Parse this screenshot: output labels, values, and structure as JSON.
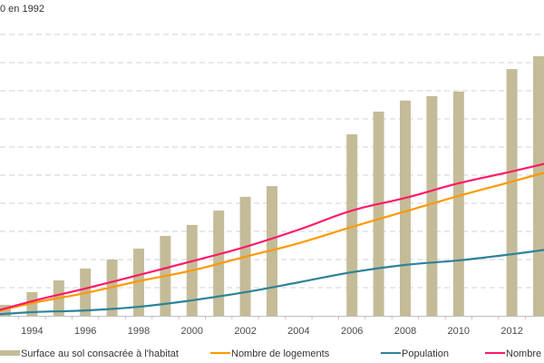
{
  "chart_data": {
    "type": "bar+line",
    "title": "0 en 1992",
    "xlabel": "",
    "ylabel": "",
    "ylim": [
      100,
      200
    ],
    "grid": true,
    "grid_step": 10,
    "x_tick_labels": [
      "1994",
      "1996",
      "1998",
      "2000",
      "2002",
      "2004",
      "2006",
      "2008",
      "2010",
      "2012"
    ],
    "x_tick_years": [
      1994,
      1996,
      1998,
      2000,
      2002,
      2004,
      2006,
      2008,
      2010,
      2012
    ],
    "legend_position": "bottom",
    "bar_series": {
      "name": "Surface au sol consacrée à l'habitat",
      "color": "#c4bc98",
      "years": [
        1993,
        1994,
        1995,
        1996,
        1997,
        1998,
        1999,
        2000,
        2001,
        2002,
        2003,
        2006,
        2007,
        2008,
        2009,
        2010,
        2012,
        2013
      ],
      "values": [
        103.9,
        108.4,
        112.6,
        116.8,
        120.0,
        123.9,
        128.4,
        132.3,
        137.4,
        142.3,
        146.1,
        164.5,
        172.6,
        176.5,
        178.1,
        179.7,
        187.7,
        192.3
      ]
    },
    "line_series": [
      {
        "name": "Nombre de logements",
        "color": "#ff9900",
        "years": [
          1992,
          1994,
          1996,
          1998,
          2000,
          2002,
          2004,
          2006,
          2008,
          2010,
          2012,
          2014
        ],
        "values": [
          100,
          104.5,
          108.1,
          112.3,
          116.1,
          121.0,
          125.8,
          131.6,
          137.1,
          142.6,
          147.7,
          152.9
        ]
      },
      {
        "name": "Population",
        "color": "#2e8399",
        "years": [
          1992,
          1994,
          1996,
          1998,
          2000,
          2002,
          2004,
          2006,
          2008,
          2010,
          2012,
          2014
        ],
        "values": [
          100,
          101.3,
          101.9,
          103.2,
          105.5,
          108.4,
          111.9,
          115.5,
          118.1,
          119.7,
          121.9,
          124.5
        ]
      },
      {
        "name": "Nombre de m",
        "color": "#ff1a66",
        "years": [
          1992,
          1994,
          1996,
          1998,
          2000,
          2002,
          2004,
          2006,
          2008,
          2010,
          2012,
          2014
        ],
        "values": [
          100,
          105.2,
          109.7,
          114.5,
          119.4,
          124.5,
          130.6,
          137.4,
          141.9,
          147.1,
          151.3,
          155.8
        ]
      }
    ]
  },
  "legend": {
    "items": [
      {
        "label": "Surface au sol consacrée à l'habitat",
        "kind": "bar",
        "color": "#c4bc98"
      },
      {
        "label": "Nombre de logements",
        "kind": "line",
        "color": "#ff9900"
      },
      {
        "label": "Population",
        "kind": "line",
        "color": "#2e8399"
      },
      {
        "label": "Nombre de m",
        "kind": "line",
        "color": "#ff1a66"
      }
    ]
  },
  "colors": {
    "grid": "#d0d0d0",
    "axis": "#bfbfbf"
  }
}
